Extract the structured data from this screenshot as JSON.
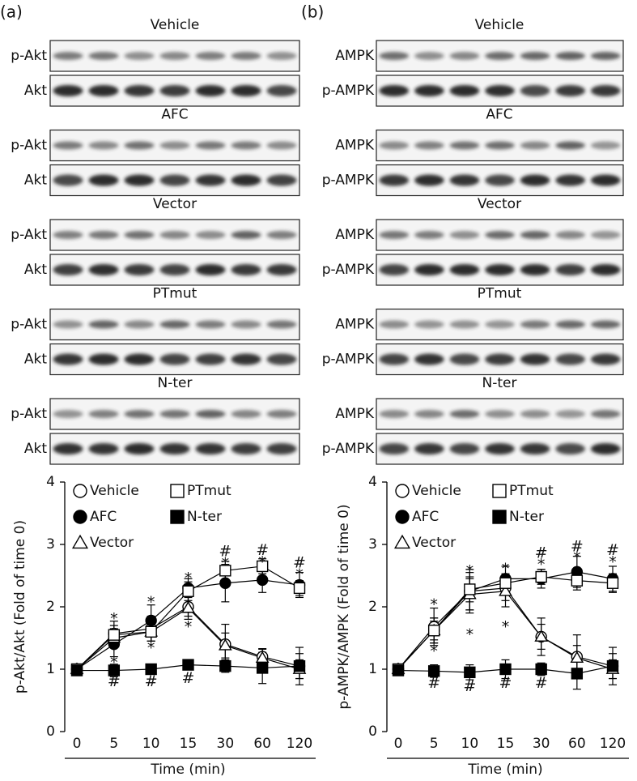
{
  "panel_labels": [
    "(a)",
    "(b)"
  ],
  "blots": [
    {
      "groups": [
        {
          "title": "Vehicle",
          "rows": [
            "p-Akt",
            "Akt"
          ]
        },
        {
          "title": "AFC",
          "rows": [
            "p-Akt",
            "Akt"
          ]
        },
        {
          "title": "Vector",
          "rows": [
            "p-Akt",
            "Akt"
          ]
        },
        {
          "title": "PTmut",
          "rows": [
            "p-Akt",
            "Akt"
          ]
        },
        {
          "title": "N-ter",
          "rows": [
            "p-Akt",
            "Akt"
          ]
        }
      ]
    },
    {
      "groups": [
        {
          "title": "Vehicle",
          "rows": [
            "AMPK",
            "p-AMPK"
          ]
        },
        {
          "title": "AFC",
          "rows": [
            "AMPK",
            "p-AMPK"
          ]
        },
        {
          "title": "Vector",
          "rows": [
            "AMPK",
            "p-AMPK"
          ]
        },
        {
          "title": "PTmut",
          "rows": [
            "AMPK",
            "p-AMPK"
          ]
        },
        {
          "title": "N-ter",
          "rows": [
            "AMPK",
            "p-AMPK"
          ]
        }
      ]
    }
  ],
  "chart_data": [
    {
      "type": "line",
      "xlabel": "Time (min)",
      "ylabel": "p-Akt/Akt (Fold of time 0)",
      "categories": [
        "0",
        "5",
        "10",
        "15",
        "30",
        "60",
        "120"
      ],
      "ylim": [
        0,
        4
      ],
      "yticks": [
        0,
        1,
        2,
        3,
        4
      ],
      "series": [
        {
          "name": "Vehicle",
          "color": "#000000",
          "marker": "circle",
          "fill": "open",
          "values": [
            1,
            1.57,
            1.65,
            2.0,
            1.4,
            1.2,
            1.05
          ],
          "errors": [
            0,
            0.2,
            0.2,
            0.15,
            0.32,
            0.12,
            0.2
          ]
        },
        {
          "name": "AFC",
          "color": "#000000",
          "marker": "circle",
          "fill": "filled",
          "values": [
            1,
            1.4,
            1.78,
            2.3,
            2.38,
            2.43,
            2.35
          ],
          "errors": [
            0,
            0.2,
            0.25,
            0.15,
            0.3,
            0.2,
            0.2
          ]
        },
        {
          "name": "Vector",
          "color": "#000000",
          "marker": "triangle",
          "fill": "open",
          "values": [
            1,
            1.5,
            1.6,
            1.98,
            1.38,
            1.18,
            1.0
          ],
          "errors": [
            0,
            0.15,
            0.15,
            0.18,
            0.2,
            0.15,
            0.15
          ]
        },
        {
          "name": "PTmut",
          "color": "#000000",
          "marker": "square",
          "fill": "open",
          "values": [
            1,
            1.55,
            1.6,
            2.25,
            2.58,
            2.65,
            2.3
          ],
          "errors": [
            0,
            0.15,
            0.15,
            0.15,
            0.15,
            0.12,
            0.12
          ]
        },
        {
          "name": "N-ter",
          "color": "#000000",
          "marker": "square",
          "fill": "filled",
          "values": [
            0.98,
            0.98,
            1.0,
            1.07,
            1.05,
            1.02,
            1.05
          ],
          "errors": [
            0,
            0.1,
            0.05,
            0.08,
            0.1,
            0.25,
            0.3
          ]
        }
      ],
      "annotations": [
        {
          "text": "*",
          "category": "5",
          "y": 1.85
        },
        {
          "text": "*",
          "category": "5",
          "y": 1.15
        },
        {
          "text": "#",
          "category": "5",
          "y": 0.8
        },
        {
          "text": "*",
          "category": "10",
          "y": 2.12
        },
        {
          "text": "*",
          "category": "10",
          "y": 1.38
        },
        {
          "text": "#",
          "category": "10",
          "y": 0.8
        },
        {
          "text": "*",
          "category": "15",
          "y": 2.5
        },
        {
          "text": "*",
          "category": "15",
          "y": 1.72
        },
        {
          "text": "#",
          "category": "15",
          "y": 0.85
        },
        {
          "text": "#",
          "category": "30",
          "y": 2.88
        },
        {
          "text": "*",
          "category": "30",
          "y": 2.74
        },
        {
          "text": "#",
          "category": "60",
          "y": 2.9
        },
        {
          "text": "*",
          "category": "60",
          "y": 2.76
        },
        {
          "text": "#",
          "category": "120",
          "y": 2.7
        },
        {
          "text": "*",
          "category": "120",
          "y": 2.56
        }
      ]
    },
    {
      "type": "line",
      "xlabel": "Time (min)",
      "ylabel": "p-AMPK/AMPK (Fold of time 0)",
      "categories": [
        "0",
        "5",
        "10",
        "15",
        "30",
        "60",
        "120"
      ],
      "ylim": [
        0,
        4
      ],
      "yticks": [
        0,
        1,
        2,
        3,
        4
      ],
      "series": [
        {
          "name": "Vehicle",
          "color": "#000000",
          "marker": "circle",
          "fill": "open",
          "values": [
            1,
            1.68,
            2.25,
            2.3,
            1.52,
            1.2,
            1.05
          ],
          "errors": [
            0,
            0.3,
            0.3,
            0.2,
            0.3,
            0.35,
            0.2
          ]
        },
        {
          "name": "AFC",
          "color": "#000000",
          "marker": "circle",
          "fill": "filled",
          "values": [
            1,
            1.62,
            2.25,
            2.45,
            2.45,
            2.56,
            2.45
          ],
          "errors": [
            0,
            0.2,
            0.35,
            0.2,
            0.15,
            0.25,
            0.2
          ]
        },
        {
          "name": "Vector",
          "color": "#000000",
          "marker": "triangle",
          "fill": "open",
          "values": [
            1,
            1.62,
            2.2,
            2.25,
            1.52,
            1.18,
            1.0
          ],
          "errors": [
            0,
            0.2,
            0.25,
            0.25,
            0.2,
            0.2,
            0.15
          ]
        },
        {
          "name": "PTmut",
          "color": "#000000",
          "marker": "square",
          "fill": "open",
          "values": [
            1,
            1.62,
            2.28,
            2.38,
            2.48,
            2.42,
            2.38
          ],
          "errors": [
            0,
            0.15,
            0.2,
            0.15,
            0.12,
            0.15,
            0.15
          ]
        },
        {
          "name": "N-ter",
          "color": "#000000",
          "marker": "square",
          "fill": "filled",
          "values": [
            0.98,
            0.97,
            0.95,
            1.0,
            1.0,
            0.93,
            1.05
          ],
          "errors": [
            0,
            0.1,
            0.12,
            0.15,
            0.1,
            0.25,
            0.3
          ]
        }
      ],
      "annotations": [
        {
          "text": "*",
          "category": "5",
          "y": 2.08
        },
        {
          "text": "*",
          "category": "5",
          "y": 1.33
        },
        {
          "text": "#",
          "category": "5",
          "y": 0.77
        },
        {
          "text": "*",
          "category": "10",
          "y": 2.62
        },
        {
          "text": "*",
          "category": "10",
          "y": 1.6
        },
        {
          "text": "#",
          "category": "10",
          "y": 0.72
        },
        {
          "text": "*",
          "category": "15",
          "y": 2.65
        },
        {
          "text": "*",
          "category": "15",
          "y": 1.72
        },
        {
          "text": "#",
          "category": "15",
          "y": 0.77
        },
        {
          "text": "#",
          "category": "30",
          "y": 2.86
        },
        {
          "text": "*",
          "category": "30",
          "y": 2.72
        },
        {
          "text": "#",
          "category": "30",
          "y": 0.77
        },
        {
          "text": "#",
          "category": "60",
          "y": 2.96
        },
        {
          "text": "*",
          "category": "60",
          "y": 2.83
        },
        {
          "text": "#",
          "category": "120",
          "y": 2.9
        },
        {
          "text": "*",
          "category": "120",
          "y": 2.76
        }
      ]
    }
  ]
}
